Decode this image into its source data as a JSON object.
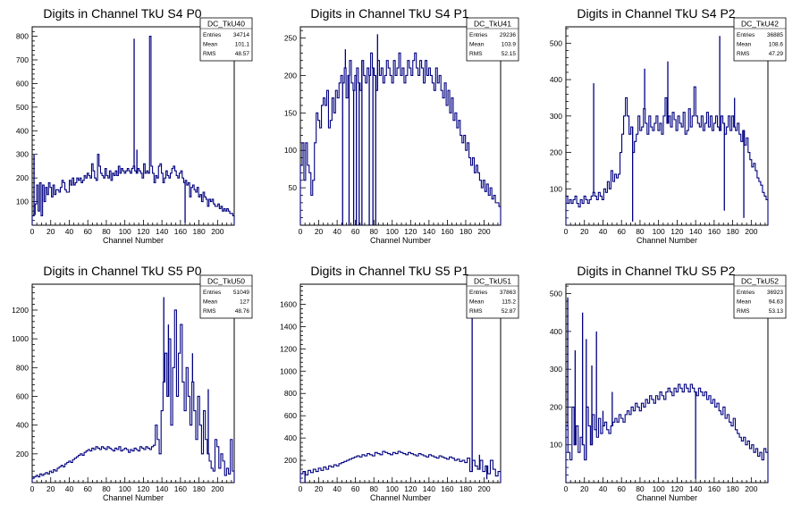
{
  "chart_data": [
    {
      "type": "histogram",
      "title": "Digits in Channel TkU S4 P0",
      "xlabel": "Channel Number",
      "ylabel": "",
      "xlim": [
        0,
        218
      ],
      "ylim": [
        0,
        840
      ],
      "xticks": [
        0,
        20,
        40,
        60,
        80,
        100,
        120,
        140,
        160,
        180,
        200
      ],
      "yticks": [
        100,
        200,
        300,
        400,
        500,
        600,
        700,
        800
      ],
      "stats": {
        "name": "DC_TkU40",
        "Entries": "34714",
        "Mean": "101.1",
        "RMS": "48.57"
      },
      "series": [
        {
          "values": [
            40,
            45,
            90,
            170,
            60,
            180,
            40,
            170,
            100,
            160,
            130,
            180,
            160,
            120,
            170,
            130,
            150,
            150,
            140,
            160,
            190,
            180,
            150,
            140,
            140,
            190,
            170,
            200,
            170,
            180,
            200,
            190,
            200,
            180,
            190,
            210,
            200,
            220,
            210,
            200,
            260,
            230,
            200,
            190,
            300,
            250,
            220,
            210,
            200,
            240,
            210,
            200,
            230,
            190,
            220,
            210,
            230,
            210,
            250,
            220,
            240,
            230,
            220,
            230,
            240,
            230,
            220,
            240,
            250,
            230,
            220,
            240,
            230,
            220,
            200,
            260,
            220,
            230,
            220,
            800,
            250,
            220,
            180,
            210,
            200,
            250,
            260,
            220,
            180,
            200,
            230,
            210,
            200,
            220,
            240,
            250,
            230,
            210,
            200,
            220,
            230,
            200,
            180,
            190,
            170,
            180,
            120,
            160,
            170,
            150,
            140,
            160,
            120,
            130,
            100,
            140,
            120,
            110,
            80,
            110,
            100,
            110,
            90,
            80,
            80,
            90,
            70,
            80,
            60,
            70,
            60,
            70,
            60,
            50,
            50,
            40
          ]
        }
      ],
      "spikes": [
        {
          "x": 2,
          "y": 300
        },
        {
          "x": 110,
          "y": 790
        },
        {
          "x": 113,
          "y": 320
        },
        {
          "x": 165,
          "y": 10
        }
      ]
    },
    {
      "type": "histogram",
      "title": "Digits in Channel TkU S4 P1",
      "xlabel": "Channel Number",
      "ylabel": "",
      "xlim": [
        0,
        218
      ],
      "ylim": [
        0,
        265
      ],
      "xticks": [
        0,
        20,
        40,
        60,
        80,
        100,
        120,
        140,
        160,
        180,
        200
      ],
      "yticks": [
        50,
        100,
        150,
        200,
        250
      ],
      "stats": {
        "name": "DC_TkU41",
        "Entries": "29236",
        "Mean": "103.9",
        "RMS": "52.15"
      },
      "series": [
        {
          "values": [
            80,
            110,
            60,
            110,
            80,
            70,
            40,
            60,
            110,
            150,
            140,
            130,
            160,
            170,
            160,
            180,
            130,
            140,
            170,
            150,
            180,
            170,
            190,
            200,
            190,
            210,
            170,
            200,
            220,
            190,
            180,
            200,
            210,
            190,
            180,
            220,
            200,
            190,
            210,
            200,
            230,
            210,
            200,
            180,
            220,
            200,
            210,
            190,
            200,
            220,
            210,
            200,
            190,
            220,
            200,
            210,
            230,
            200,
            210,
            190,
            200,
            220,
            210,
            200,
            220,
            230,
            210,
            200,
            220,
            210,
            190,
            220,
            200,
            210,
            200,
            190,
            180,
            210,
            190,
            200,
            180,
            170,
            190,
            160,
            180,
            150,
            170,
            140,
            150,
            130,
            140,
            120,
            110,
            120,
            100,
            110,
            90,
            80,
            90,
            70,
            80,
            70,
            60,
            50,
            60,
            45,
            55,
            40,
            50,
            35,
            40,
            30,
            30,
            25
          ]
        }
      ],
      "spikes": [
        {
          "x": 46,
          "y": 0
        },
        {
          "x": 49,
          "y": 235
        },
        {
          "x": 53,
          "y": 0
        },
        {
          "x": 58,
          "y": 0
        },
        {
          "x": 61,
          "y": 0
        },
        {
          "x": 64,
          "y": 0
        },
        {
          "x": 67,
          "y": 0
        },
        {
          "x": 75,
          "y": 0
        },
        {
          "x": 79,
          "y": 0
        },
        {
          "x": 82,
          "y": 0
        },
        {
          "x": 84,
          "y": 255
        }
      ]
    },
    {
      "type": "histogram",
      "title": "Digits in Channel TkU S4 P2",
      "xlabel": "Channel Number",
      "ylabel": "",
      "xlim": [
        0,
        218
      ],
      "ylim": [
        0,
        545
      ],
      "xticks": [
        0,
        20,
        40,
        60,
        80,
        100,
        120,
        140,
        160,
        180,
        200
      ],
      "yticks": [
        100,
        200,
        300,
        400,
        500
      ],
      "stats": {
        "name": "DC_TkU42",
        "Entries": "36885",
        "Mean": "108.6",
        "RMS": "47.29"
      },
      "series": [
        {
          "values": [
            80,
            60,
            70,
            60,
            70,
            80,
            60,
            50,
            70,
            60,
            80,
            70,
            60,
            70,
            80,
            90,
            80,
            70,
            90,
            80,
            70,
            100,
            90,
            120,
            100,
            150,
            120,
            140,
            130,
            140,
            200,
            250,
            300,
            350,
            300,
            250,
            270,
            200,
            230,
            250,
            300,
            260,
            270,
            320,
            280,
            250,
            300,
            270,
            260,
            280,
            300,
            260,
            280,
            250,
            300,
            350,
            280,
            300,
            270,
            310,
            290,
            260,
            300,
            280,
            270,
            310,
            250,
            260,
            320,
            270,
            300,
            380,
            300,
            280,
            270,
            300,
            260,
            280,
            310,
            270,
            300,
            260,
            280,
            300,
            270,
            260,
            300,
            280,
            250,
            270,
            300,
            260,
            300,
            270,
            260,
            280,
            250,
            230,
            260,
            220,
            240,
            200,
            180,
            160,
            170,
            150,
            130,
            120,
            110,
            90,
            80,
            70
          ]
        }
      ],
      "spikes": [
        {
          "x": 30,
          "y": 390
        },
        {
          "x": 72,
          "y": 10
        },
        {
          "x": 85,
          "y": 430
        },
        {
          "x": 110,
          "y": 450
        },
        {
          "x": 166,
          "y": 520
        },
        {
          "x": 171,
          "y": 40
        },
        {
          "x": 182,
          "y": 350
        },
        {
          "x": 192,
          "y": 20
        }
      ]
    },
    {
      "type": "histogram",
      "title": "Digits in Channel TkU S5 P0",
      "xlabel": "Channel Number",
      "ylabel": "",
      "xlim": [
        0,
        218
      ],
      "ylim": [
        0,
        1380
      ],
      "xticks": [
        0,
        20,
        40,
        60,
        80,
        100,
        120,
        140,
        160,
        180,
        200
      ],
      "yticks": [
        200,
        400,
        600,
        800,
        1000,
        1200
      ],
      "stats": {
        "name": "DC_TkU50",
        "Entries": "51049",
        "Mean": "127",
        "RMS": "48.76"
      },
      "series": [
        {
          "values": [
            30,
            40,
            50,
            40,
            60,
            50,
            60,
            70,
            60,
            80,
            70,
            90,
            80,
            100,
            110,
            120,
            110,
            130,
            140,
            150,
            140,
            160,
            170,
            180,
            190,
            200,
            190,
            210,
            220,
            230,
            220,
            240,
            230,
            250,
            240,
            230,
            250,
            240,
            230,
            250,
            240,
            230,
            220,
            240,
            230,
            250,
            220,
            230,
            240,
            230,
            210,
            230,
            220,
            240,
            230,
            220,
            250,
            240,
            230,
            250,
            240,
            230,
            250,
            260,
            400,
            300,
            200,
            500,
            700,
            900,
            600,
            1000,
            400,
            800,
            1200,
            600,
            900,
            1100,
            700,
            500,
            800,
            600,
            400,
            700,
            500,
            300,
            600,
            400,
            200,
            500,
            300,
            200,
            150,
            100,
            80,
            300,
            250,
            100,
            200,
            150,
            50,
            100,
            60,
            300,
            80
          ]
        }
      ],
      "spikes": [
        {
          "x": 142,
          "y": 1290
        },
        {
          "x": 147,
          "y": 1100
        },
        {
          "x": 173,
          "y": 900
        },
        {
          "x": 190,
          "y": 650
        }
      ]
    },
    {
      "type": "histogram",
      "title": "Digits in Channel TkU S5 P1",
      "xlabel": "Channel Number",
      "ylabel": "",
      "xlim": [
        0,
        218
      ],
      "ylim": [
        0,
        1780
      ],
      "xticks": [
        0,
        20,
        40,
        60,
        80,
        100,
        120,
        140,
        160,
        180,
        200
      ],
      "yticks": [
        200,
        400,
        600,
        800,
        1000,
        1200,
        1400,
        1600
      ],
      "stats": {
        "name": "DC_TkU51",
        "Entries": "37863",
        "Mean": "115.2",
        "RMS": "52.87"
      },
      "series": [
        {
          "values": [
            80,
            100,
            70,
            110,
            90,
            120,
            100,
            130,
            110,
            140,
            120,
            150,
            140,
            160,
            150,
            170,
            180,
            190,
            200,
            210,
            220,
            230,
            240,
            230,
            250,
            240,
            260,
            250,
            240,
            270,
            260,
            250,
            280,
            270,
            260,
            250,
            270,
            260,
            280,
            270,
            260,
            250,
            270,
            260,
            250,
            240,
            260,
            250,
            240,
            230,
            250,
            240,
            230,
            220,
            240,
            230,
            220,
            210,
            230,
            220,
            200,
            210,
            190,
            200,
            180,
            220,
            100,
            200,
            150,
            120,
            200,
            100,
            150,
            80,
            200,
            120,
            60,
            100
          ]
        }
      ],
      "spikes": [
        {
          "x": 5,
          "y": 0
        },
        {
          "x": 187,
          "y": 1560
        },
        {
          "x": 195,
          "y": 250
        },
        {
          "x": 203,
          "y": 30
        }
      ]
    },
    {
      "type": "histogram",
      "title": "Digits in Channel TkU S5 P2",
      "xlabel": "Channel Number",
      "ylabel": "",
      "xlim": [
        0,
        218
      ],
      "ylim": [
        0,
        525
      ],
      "xticks": [
        0,
        20,
        40,
        60,
        80,
        100,
        120,
        140,
        160,
        180,
        200
      ],
      "yticks": [
        100,
        200,
        300,
        400,
        500
      ],
      "stats": {
        "name": "DC_TkU52",
        "Entries": "36923",
        "Mean": "94.63",
        "RMS": "53.13"
      },
      "series": [
        {
          "values": [
            150,
            80,
            60,
            200,
            100,
            150,
            80,
            120,
            100,
            60,
            200,
            150,
            100,
            180,
            140,
            120,
            170,
            130,
            150,
            160,
            140,
            130,
            150,
            160,
            170,
            160,
            180,
            170,
            160,
            180,
            190,
            180,
            200,
            190,
            210,
            200,
            190,
            210,
            200,
            220,
            210,
            230,
            220,
            210,
            230,
            220,
            240,
            230,
            220,
            240,
            250,
            240,
            230,
            250,
            240,
            260,
            250,
            240,
            260,
            250,
            240,
            260,
            250,
            240,
            230,
            250,
            240,
            230,
            240,
            220,
            230,
            210,
            220,
            200,
            210,
            190,
            180,
            200,
            170,
            180,
            160,
            150,
            170,
            140,
            130,
            120,
            110,
            120,
            100,
            110,
            90,
            100,
            80,
            90,
            70,
            80,
            60,
            90,
            80
          ]
        }
      ],
      "spikes": [
        {
          "x": 2,
          "y": 490
        },
        {
          "x": 10,
          "y": 350
        },
        {
          "x": 18,
          "y": 450
        },
        {
          "x": 22,
          "y": 380
        },
        {
          "x": 28,
          "y": 310
        },
        {
          "x": 33,
          "y": 400
        },
        {
          "x": 40,
          "y": 190
        },
        {
          "x": 50,
          "y": 240
        },
        {
          "x": 140,
          "y": 10
        }
      ]
    }
  ]
}
